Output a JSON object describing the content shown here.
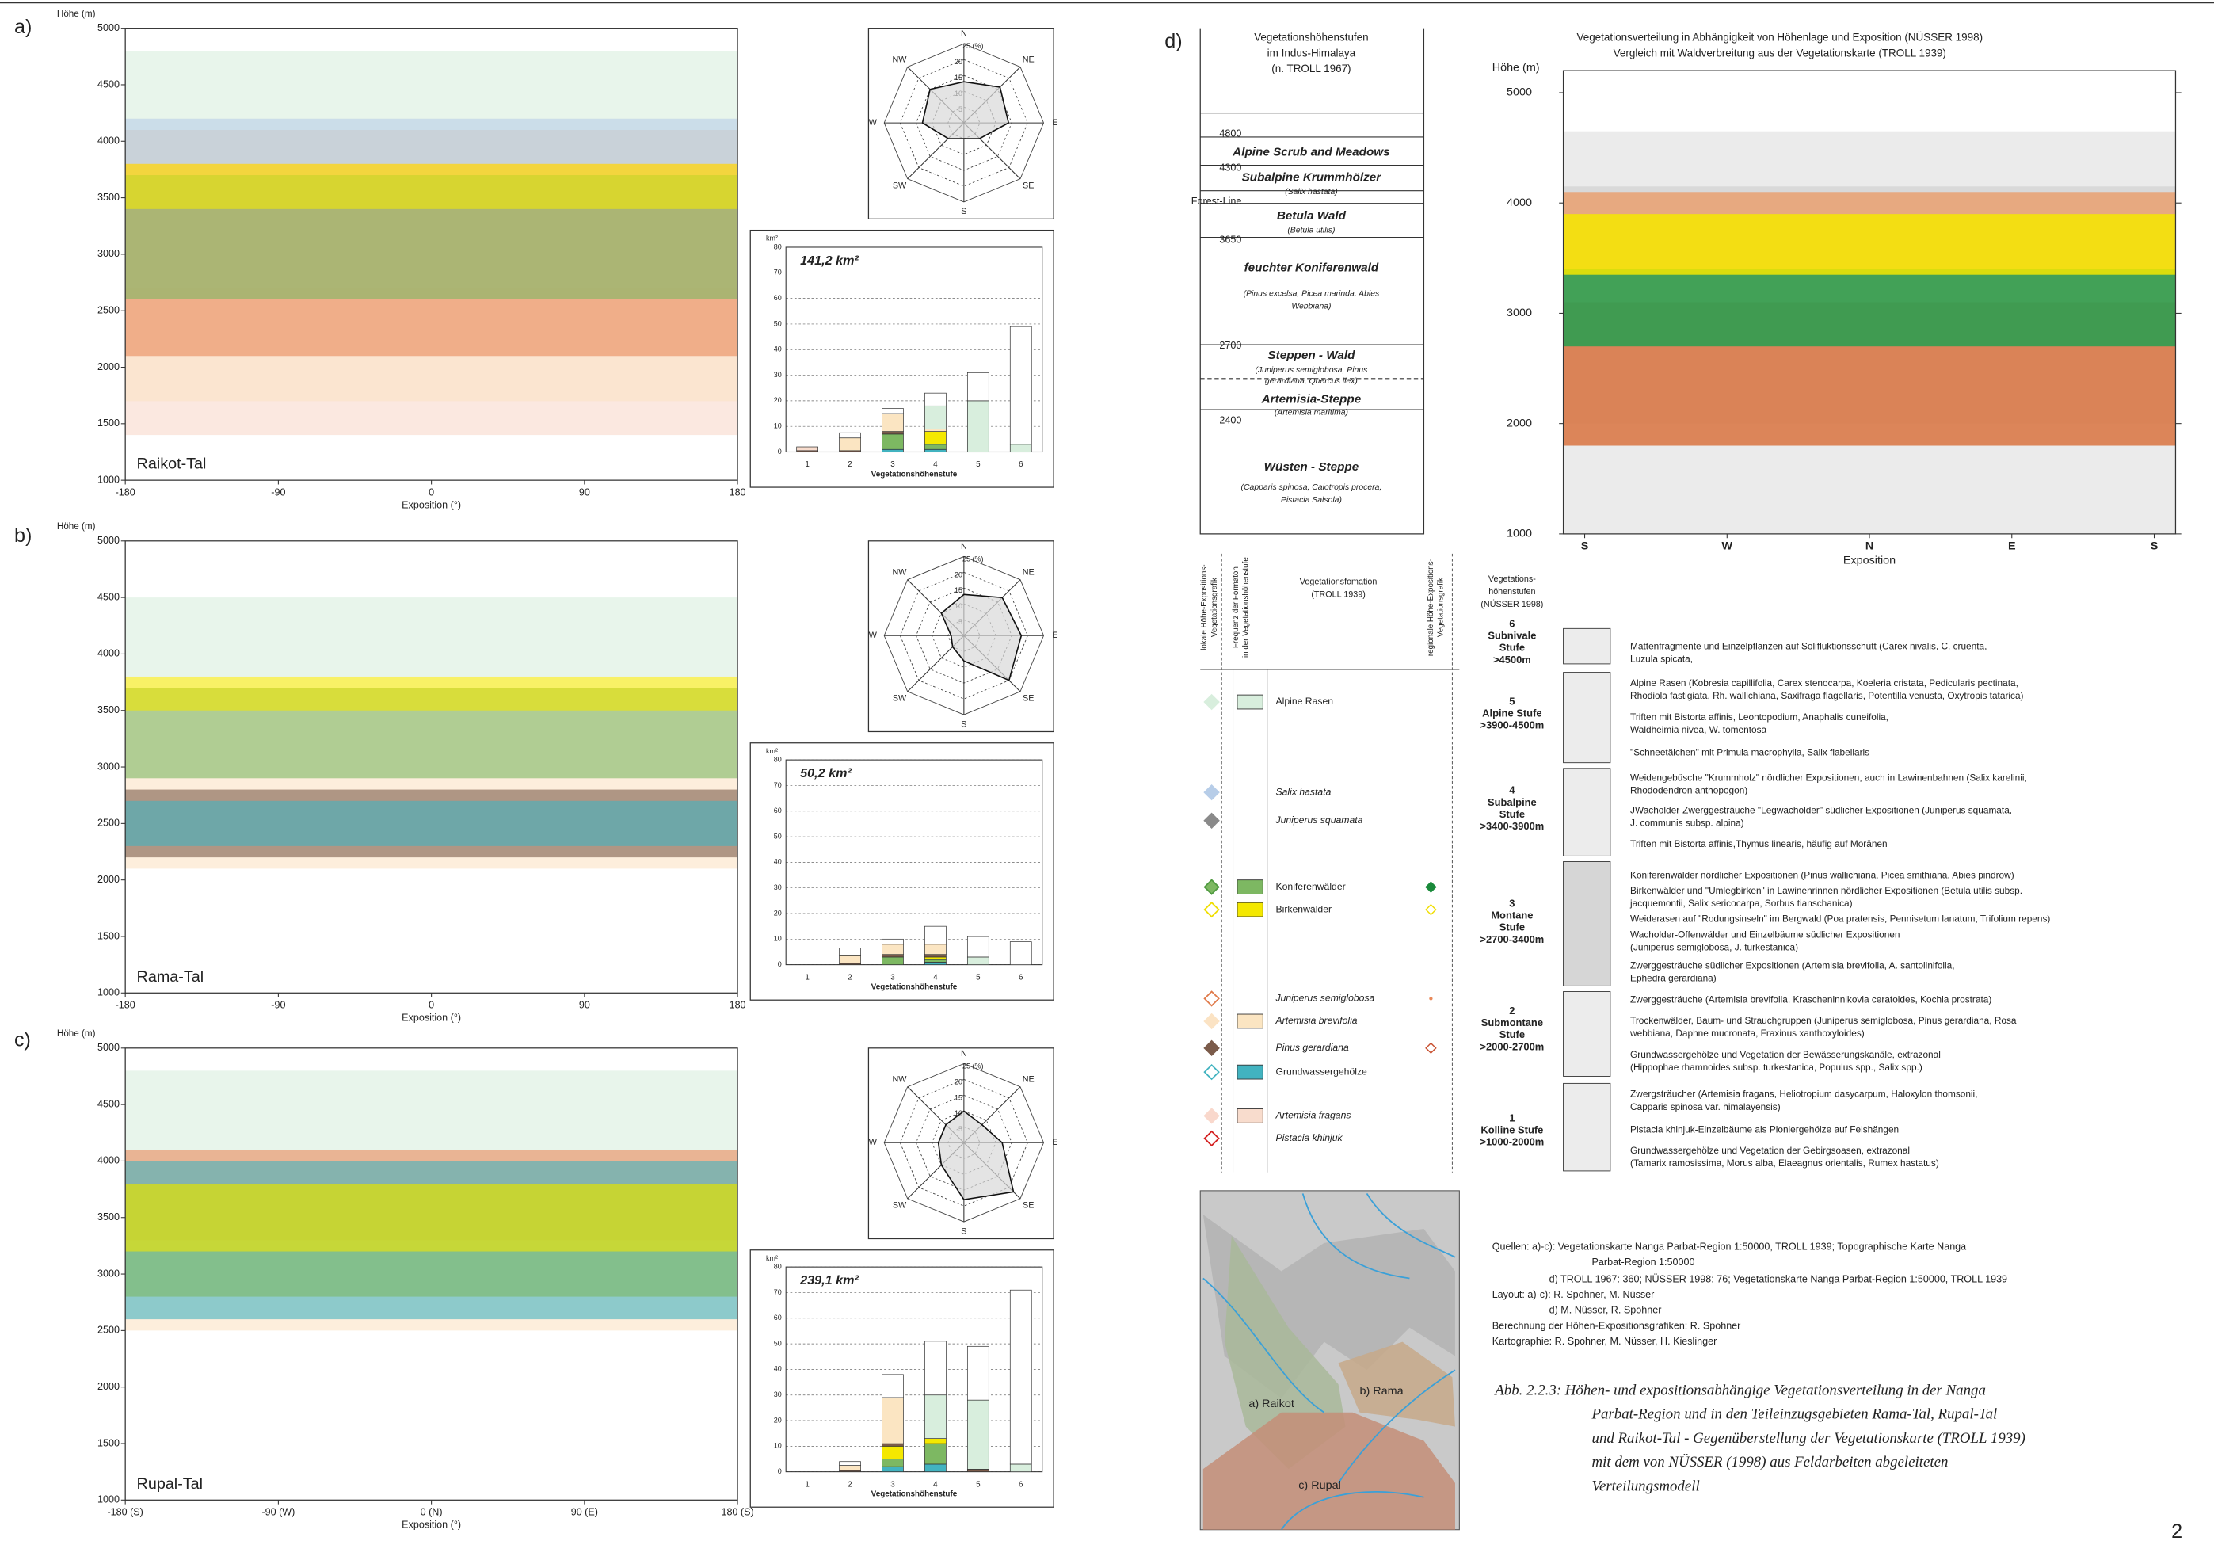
{
  "panel_labels": [
    "a)",
    "b)",
    "c)",
    "d)"
  ],
  "chart_data": [
    {
      "type": "band",
      "ylabel": "Höhe (m)",
      "xlabel": "Exposition (°)",
      "label": "Raikot-Tal",
      "xlim": [
        -180,
        180
      ],
      "xticks": [
        -180,
        -90,
        0,
        90,
        180
      ],
      "ylim": [
        1000,
        5000
      ],
      "yticks": [
        1000,
        1500,
        2000,
        2500,
        3000,
        3500,
        4000,
        4500,
        5000
      ],
      "series": [
        {
          "color": "#f9d8cc",
          "range": [
            1400,
            2700
          ]
        },
        {
          "color": "#fbe3c4",
          "range": [
            1700,
            3400
          ]
        },
        {
          "color": "#e9895a",
          "range": [
            2100,
            4100
          ]
        },
        {
          "color": "#d8eedd",
          "range": [
            3800,
            4800
          ]
        },
        {
          "color": "#b7cde8",
          "range": [
            3800,
            4200
          ]
        },
        {
          "color": "#7db862",
          "range": [
            2600,
            3700
          ]
        },
        {
          "color": "#f4e800",
          "range": [
            3400,
            3800
          ]
        }
      ]
    },
    {
      "type": "radar",
      "categories": [
        "N",
        "NE",
        "E",
        "SE",
        "S",
        "SW",
        "W",
        "NW"
      ],
      "values": [
        13,
        16,
        14,
        7,
        5,
        7,
        13,
        15
      ],
      "rlim": [
        0,
        25
      ],
      "rticks": [
        5,
        10,
        15,
        20,
        {
          "value": 25,
          "label": "25 (%)"
        }
      ],
      "color": "#d9d9d9"
    },
    {
      "type": "bar",
      "title": "141,2 km²",
      "ylabel": "km²",
      "xlabel": "Vegetationshöhenstufe",
      "categories": [
        "1",
        "2",
        "3",
        "4",
        "5",
        "6"
      ],
      "ylim": [
        0,
        80
      ],
      "yticks": [
        0,
        10,
        20,
        30,
        40,
        50,
        60,
        70,
        80
      ],
      "grid": true,
      "series": [
        {
          "color": "#42b3c0",
          "values": [
            0,
            0,
            1,
            1,
            0,
            0
          ]
        },
        {
          "color": "#7db862",
          "values": [
            0,
            0,
            6,
            2,
            0,
            0
          ]
        },
        {
          "color": "#f4e800",
          "values": [
            0,
            0,
            0,
            5,
            0,
            0
          ]
        },
        {
          "color": "#7b5b4a",
          "values": [
            0.5,
            0.5,
            1,
            0,
            0,
            0
          ]
        },
        {
          "color": "#fbe5c2",
          "values": [
            0,
            5,
            7,
            1,
            0,
            0
          ]
        },
        {
          "color": "#f8dccd",
          "values": [
            1.5,
            0,
            0,
            0,
            0,
            0
          ]
        },
        {
          "color": "#d8eedd",
          "values": [
            0,
            0,
            0,
            9,
            20,
            3
          ]
        },
        {
          "color": "#ffffff",
          "values": [
            0,
            2,
            2,
            5,
            11,
            46
          ]
        }
      ]
    },
    {
      "type": "band",
      "ylabel": "Höhe (m)",
      "xlabel": "Exposition (°)",
      "label": "Rama-Tal",
      "xlim": [
        -180,
        180
      ],
      "xticks": [
        -180,
        -90,
        0,
        90,
        180
      ],
      "ylim": [
        1000,
        5000
      ],
      "yticks": [
        1000,
        1500,
        2000,
        2500,
        3000,
        3500,
        4000,
        4500,
        5000
      ],
      "series": [
        {
          "color": "#fbe3c4",
          "range": [
            2100,
            3700
          ]
        },
        {
          "color": "#7b5b4a",
          "range": [
            2200,
            2800
          ]
        },
        {
          "color": "#d8eedd",
          "range": [
            3800,
            4500
          ]
        },
        {
          "color": "#7db862",
          "range": [
            2900,
            3700
          ]
        },
        {
          "color": "#f4e800",
          "range": [
            3500,
            3800
          ]
        },
        {
          "color": "#42b3c0",
          "range": [
            2300,
            2700
          ]
        }
      ]
    },
    {
      "type": "radar",
      "categories": [
        "N",
        "NE",
        "E",
        "SE",
        "S",
        "SW",
        "W",
        "NW"
      ],
      "values": [
        13,
        17,
        18,
        20,
        8,
        5,
        4,
        10
      ],
      "rlim": [
        0,
        25
      ],
      "rticks": [
        5,
        10,
        15,
        20,
        {
          "value": 25,
          "label": "25 (%)"
        }
      ],
      "color": "#d9d9d9"
    },
    {
      "type": "bar",
      "title": "50,2 km²",
      "ylabel": "km²",
      "xlabel": "Vegetationshöhenstufe",
      "categories": [
        "1",
        "2",
        "3",
        "4",
        "5",
        "6"
      ],
      "ylim": [
        0,
        80
      ],
      "yticks": [
        0,
        10,
        20,
        30,
        40,
        50,
        60,
        70,
        80
      ],
      "grid": true,
      "series": [
        {
          "color": "#42b3c0",
          "values": [
            0,
            0,
            0,
            1,
            0,
            0
          ]
        },
        {
          "color": "#7db862",
          "values": [
            0,
            0,
            3,
            1,
            0,
            0
          ]
        },
        {
          "color": "#f4e800",
          "values": [
            0,
            0,
            0,
            1,
            0,
            0
          ]
        },
        {
          "color": "#7b5b4a",
          "values": [
            0,
            0.5,
            1,
            1,
            0,
            0
          ]
        },
        {
          "color": "#fbe5c2",
          "values": [
            0,
            3,
            4,
            4,
            0,
            0
          ]
        },
        {
          "color": "#f8dccd",
          "values": [
            0,
            0,
            0,
            0,
            0,
            0
          ]
        },
        {
          "color": "#d8eedd",
          "values": [
            0,
            0,
            0,
            0,
            3,
            0
          ]
        },
        {
          "color": "#ffffff",
          "values": [
            0,
            3,
            2,
            7,
            8,
            9
          ]
        }
      ]
    },
    {
      "type": "band",
      "ylabel": "Höhe (m)",
      "xlabel": "Exposition (°)",
      "label": "Rupal-Tal",
      "xlim": [
        -180,
        180
      ],
      "xticks": [
        {
          "value": -180,
          "label": "-180 (S)"
        },
        {
          "value": -90,
          "label": "-90 (W)"
        },
        {
          "value": 0,
          "label": "0 (N)"
        },
        {
          "value": 90,
          "label": "90 (E)"
        },
        {
          "value": 180,
          "label": "180 (S)"
        }
      ],
      "ylim": [
        1000,
        5000
      ],
      "yticks": [
        1000,
        1500,
        2000,
        2500,
        3000,
        3500,
        4000,
        4500,
        5000
      ],
      "series": [
        {
          "color": "#fbe3c4",
          "range": [
            2500,
            3300
          ]
        },
        {
          "color": "#d8eedd",
          "range": [
            3800,
            4800
          ]
        },
        {
          "color": "#e9895a",
          "range": [
            3300,
            4100
          ]
        },
        {
          "color": "#42b3c0",
          "range": [
            2600,
            4000
          ]
        },
        {
          "color": "#7db862",
          "range": [
            2800,
            3800
          ]
        },
        {
          "color": "#f4e800",
          "range": [
            3200,
            3800
          ]
        }
      ]
    },
    {
      "type": "radar",
      "categories": [
        "N",
        "NE",
        "E",
        "SE",
        "S",
        "SW",
        "W",
        "NW"
      ],
      "values": [
        10,
        8,
        12,
        22,
        18,
        10,
        8,
        8
      ],
      "rlim": [
        0,
        25
      ],
      "rticks": [
        5,
        10,
        15,
        20,
        {
          "value": 25,
          "label": "25 (%)"
        }
      ],
      "color": "#d9d9d9"
    },
    {
      "type": "bar",
      "title": "239,1 km²",
      "ylabel": "km²",
      "xlabel": "Vegetationshöhenstufe",
      "categories": [
        "1",
        "2",
        "3",
        "4",
        "5",
        "6"
      ],
      "ylim": [
        0,
        80
      ],
      "yticks": [
        0,
        10,
        20,
        30,
        40,
        50,
        60,
        70,
        80
      ],
      "grid": true,
      "series": [
        {
          "color": "#42b3c0",
          "values": [
            0,
            0,
            2,
            3,
            0,
            0
          ]
        },
        {
          "color": "#7db862",
          "values": [
            0,
            0,
            3,
            8,
            0,
            0
          ]
        },
        {
          "color": "#f4e800",
          "values": [
            0,
            0,
            5,
            2,
            0,
            0
          ]
        },
        {
          "color": "#7b5b4a",
          "values": [
            0,
            0.5,
            1,
            0,
            1,
            0
          ]
        },
        {
          "color": "#fbe5c2",
          "values": [
            0,
            2,
            18,
            0,
            0,
            0
          ]
        },
        {
          "color": "#f8dccd",
          "values": [
            0,
            0,
            0,
            0,
            0,
            0
          ]
        },
        {
          "color": "#d8eedd",
          "values": [
            0,
            0,
            0,
            17,
            27,
            3
          ]
        },
        {
          "color": "#ffffff",
          "values": [
            0,
            1.5,
            9,
            21,
            21,
            68
          ]
        }
      ]
    },
    {
      "type": "band",
      "title": [
        "Vegetationsverteilung in Abhängigkeit von Höhenlage und Exposition (NÜSSER 1998)",
        "Vergleich mit Waldverbreitung aus der Vegetationskarte (TROLL 1939)"
      ],
      "ylabel": "Höhe (m)",
      "xlabel": "Exposition",
      "categories": [
        "S",
        "W",
        "N",
        "E",
        "S"
      ],
      "ylim": [
        1000,
        5200
      ],
      "yticks": [
        1000,
        2000,
        3000,
        4000,
        5000
      ],
      "series": [
        {
          "color": "#e8e8e8",
          "range": [
            1000,
            4650
          ]
        },
        {
          "color": "#d6d6d6",
          "range": [
            2000,
            4150
          ]
        },
        {
          "color": "#d9733f",
          "range": [
            1800,
            3100
          ]
        },
        {
          "color": "#e9a070",
          "range": [
            3100,
            4100
          ]
        },
        {
          "color": "#25a050",
          "range": [
            2700,
            3400
          ]
        },
        {
          "color": "#f4e800",
          "range": [
            3350,
            3900
          ]
        }
      ]
    }
  ],
  "troll_table": {
    "title": [
      "Vegetationshöhenstufen",
      "im Indus-Himalaya",
      "(n. TROLL 1967)"
    ],
    "elevations": [
      "4800",
      "4300",
      "Forest-Line",
      "3650",
      "2700",
      "2400"
    ],
    "zones": [
      {
        "name": "Alpine Scrub and Meadows"
      },
      {
        "name": "Subalpine Krummhölzer",
        "species": [
          "(Salix hastata)"
        ]
      },
      {
        "name": "Betula Wald",
        "species": [
          "(Betula utilis)"
        ]
      },
      {
        "name": "feuchter Koniferenwald",
        "species": [
          "(Pinus excelsa, Picea marinda, Abies",
          "Webbiana)"
        ]
      },
      {
        "name": "Steppen - Wald",
        "species": [
          "(Juniperus semiglobosa, Pinus",
          "gerardiana, Quercus ilex)"
        ]
      },
      {
        "name": "Artemisia-Steppe",
        "species": [
          "(Artemisia maritima)"
        ]
      },
      {
        "name": "Wüsten - Steppe",
        "species": [
          "(Capparis spinosa, Calotropis procera,",
          "Pistacia Salsola)"
        ]
      }
    ]
  },
  "legend": {
    "headers": [
      [
        "lokale Höhe-Expositions-",
        "Vegetationsgrafik"
      ],
      [
        "Frequenz der Formaton",
        "in der Vegetationshöhenstufe"
      ],
      [
        "Vegetationsfomation",
        "(TROLL 1939)"
      ],
      [
        "regionale Höhe-Expositions-",
        "Vegetationsgrafik"
      ],
      [
        "Vegetations-",
        "höhenstufen",
        "(NÜSSER 1998)"
      ]
    ],
    "formations": [
      "Alpine Rasen",
      "Salix hastata",
      "Juniperus squamata",
      "Koniferenwälder",
      "Birkenwälder",
      "Juniperus semiglobosa",
      "Artemisia brevifolia",
      "Pinus gerardiana",
      "Grundwassergehölze",
      "Artemisia fragans",
      "Pistacia khinjuk"
    ],
    "stages": [
      {
        "lines": [
          "6",
          "Subnivale",
          "Stufe",
          ">4500m"
        ],
        "descriptions": [
          [
            "Mattenfragmente und Einzelpflanzen auf Solifluktionsschutt (Carex nivalis, C. cruenta,",
            "Luzula spicata,"
          ]
        ]
      },
      {
        "lines": [
          "5",
          "Alpine Stufe",
          ">3900-4500m"
        ],
        "descriptions": [
          [
            "Alpine Rasen (Kobresia capillifolia, Carex stenocarpa, Koeleria cristata, Pedicularis pectinata,",
            "Rhodiola fastigiata, Rh. wallichiana, Saxifraga flagellaris, Potentilla venusta, Oxytropis tatarica)"
          ],
          [
            "Triften mit Bistorta affinis, Leontopodium, Anaphalis cuneifolia,",
            "Waldheimia nivea, W. tomentosa"
          ],
          [
            "\"Schneetälchen\" mit Primula macrophylla, Salix flabellaris"
          ]
        ]
      },
      {
        "lines": [
          "4",
          "Subalpine",
          "Stufe",
          ">3400-3900m"
        ],
        "descriptions": [
          [
            "Weidengebüsche \"Krummholz\" nördlicher Expositionen, auch in Lawinenbahnen (Salix karelinii,",
            "Rhododendron anthopogon)"
          ],
          [
            "JWacholder-Zwerggesträuche \"Legwacholder\" südlicher Expositionen (Juniperus squamata,",
            "J. communis subsp. alpina)"
          ],
          [
            "Triften mit Bistorta affinis,Thymus linearis, häufig auf Moränen"
          ]
        ]
      },
      {
        "lines": [
          "3",
          "Montane",
          "Stufe",
          ">2700-3400m"
        ],
        "descriptions": [
          [
            "Koniferenwälder nördlicher Expositionen (Pinus wallichiana, Picea smithiana, Abies pindrow)"
          ],
          [
            "Birkenwälder und \"Umlegbirken\" in Lawinenrinnen nördlicher Expositionen (Betula utilis subsp.",
            "jacquemontii, Salix sericocarpa, Sorbus tianschanica)"
          ],
          [
            "Weiderasen auf \"Rodungsinseln\" im Bergwald (Poa pratensis, Pennisetum lanatum, Trifolium repens)"
          ],
          [
            "Wacholder-Offenwälder und Einzelbäume südlicher Expositionen",
            "(Juniperus semiglobosa, J. turkestanica)"
          ],
          [
            "Zwerggesträuche südlicher Expositionen (Artemisia brevifolia, A. santolinifolia,",
            "Ephedra gerardiana)"
          ]
        ]
      },
      {
        "lines": [
          "2",
          "Submontane",
          "Stufe",
          ">2000-2700m"
        ],
        "descriptions": [
          [
            "Zwerggesträuche (Artemisia brevifolia, Krascheninnikovia ceratoides, Kochia prostrata)"
          ],
          [
            "Trockenwälder, Baum- und Strauchgruppen (Juniperus semiglobosa, Pinus gerardiana, Rosa",
            "webbiana, Daphne mucronata, Fraxinus xanthoxyloides)"
          ],
          [
            "Grundwassergehölze und Vegetation der Bewässerungskanäle, extrazonal",
            "(Hippophae rhamnoides subsp. turkestanica, Populus spp., Salix  spp.)"
          ]
        ]
      },
      {
        "lines": [
          "1",
          "Kolline Stufe",
          ">1000-2000m"
        ],
        "descriptions": [
          [
            "Zwergsträucher (Artemisia fragans, Heliotropium dasycarpum, Haloxylon thomsonii,",
            "Capparis spinosa var. himalayensis)"
          ],
          [
            "Pistacia khinjuk-Einzelbäume als Pioniergehölze auf Felshängen"
          ],
          [
            "Grundwassergehölze und Vegetation der Gebirgsoasen, extrazonal",
            "(Tamarix ramosissima, Morus alba, Elaeagnus orientalis, Rumex hastatus)"
          ]
        ]
      }
    ]
  },
  "map": {
    "labels": [
      "a) Raikot",
      "b) Rama",
      "c) Rupal"
    ]
  },
  "sources": [
    "Quellen: a)-c): Vegetationskarte Nanga Parbat-Region 1:50000, TROLL 1939; Topographische Karte Nanga",
    "Parbat-Region 1:50000",
    "d) TROLL 1967: 360; NÜSSER 1998: 76; Vegetationskarte Nanga Parbat-Region 1:50000, TROLL 1939",
    "Layout:  a)-c): R. Spohner, M. Nüsser",
    "d) M. Nüsser, R. Spohner",
    "Berechnung der Höhen-Expositionsgrafiken: R. Spohner",
    "Kartographie: R. Spohner, M. Nüsser, H. Kieslinger"
  ],
  "caption": [
    "Abb. 2.2.3: Höhen- und expositionsabhängige Vegetationsverteilung in der Nanga",
    "Parbat-Region und in den Teileinzugsgebieten Rama-Tal, Rupal-Tal",
    "und Raikot-Tal - Gegenüberstellung der Vegetationskarte (TROLL 1939)",
    "mit dem von NÜSSER (1998) aus Feldarbeiten abgeleiteten",
    "Verteilungsmodell"
  ],
  "page_number": "2"
}
